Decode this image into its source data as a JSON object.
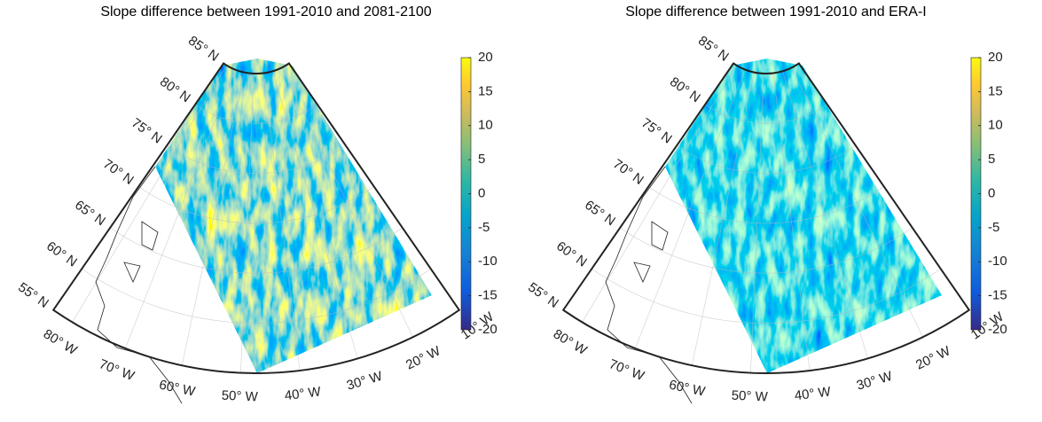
{
  "panels": [
    {
      "title": "Slope difference between 1991-2010 and 2081-2100",
      "lat_labels": [
        "85° N",
        "80° N",
        "75° N",
        "70° N",
        "65° N",
        "60° N",
        "55° N"
      ],
      "lon_labels": [
        "80° W",
        "70° W",
        "60° W",
        "50° W",
        "40° W",
        "30° W",
        "20° W",
        "10° W"
      ],
      "colorbar": {
        "lim": [
          -20,
          20
        ],
        "ticks": [
          20,
          15,
          10,
          5,
          0,
          -5,
          -10,
          -15,
          -20
        ]
      }
    },
    {
      "title": "Slope difference between 1991-2010 and ERA-I",
      "lat_labels": [
        "85° N",
        "80° N",
        "75° N",
        "70° N",
        "65° N",
        "60° N",
        "55° N"
      ],
      "lon_labels": [
        "80° W",
        "70° W",
        "60° W",
        "50° W",
        "40° W",
        "30° W",
        "20° W",
        "10° W"
      ],
      "colorbar": {
        "lim": [
          -20,
          20
        ],
        "ticks": [
          20,
          15,
          10,
          5,
          0,
          -5,
          -10,
          -15,
          -20
        ]
      }
    }
  ]
}
